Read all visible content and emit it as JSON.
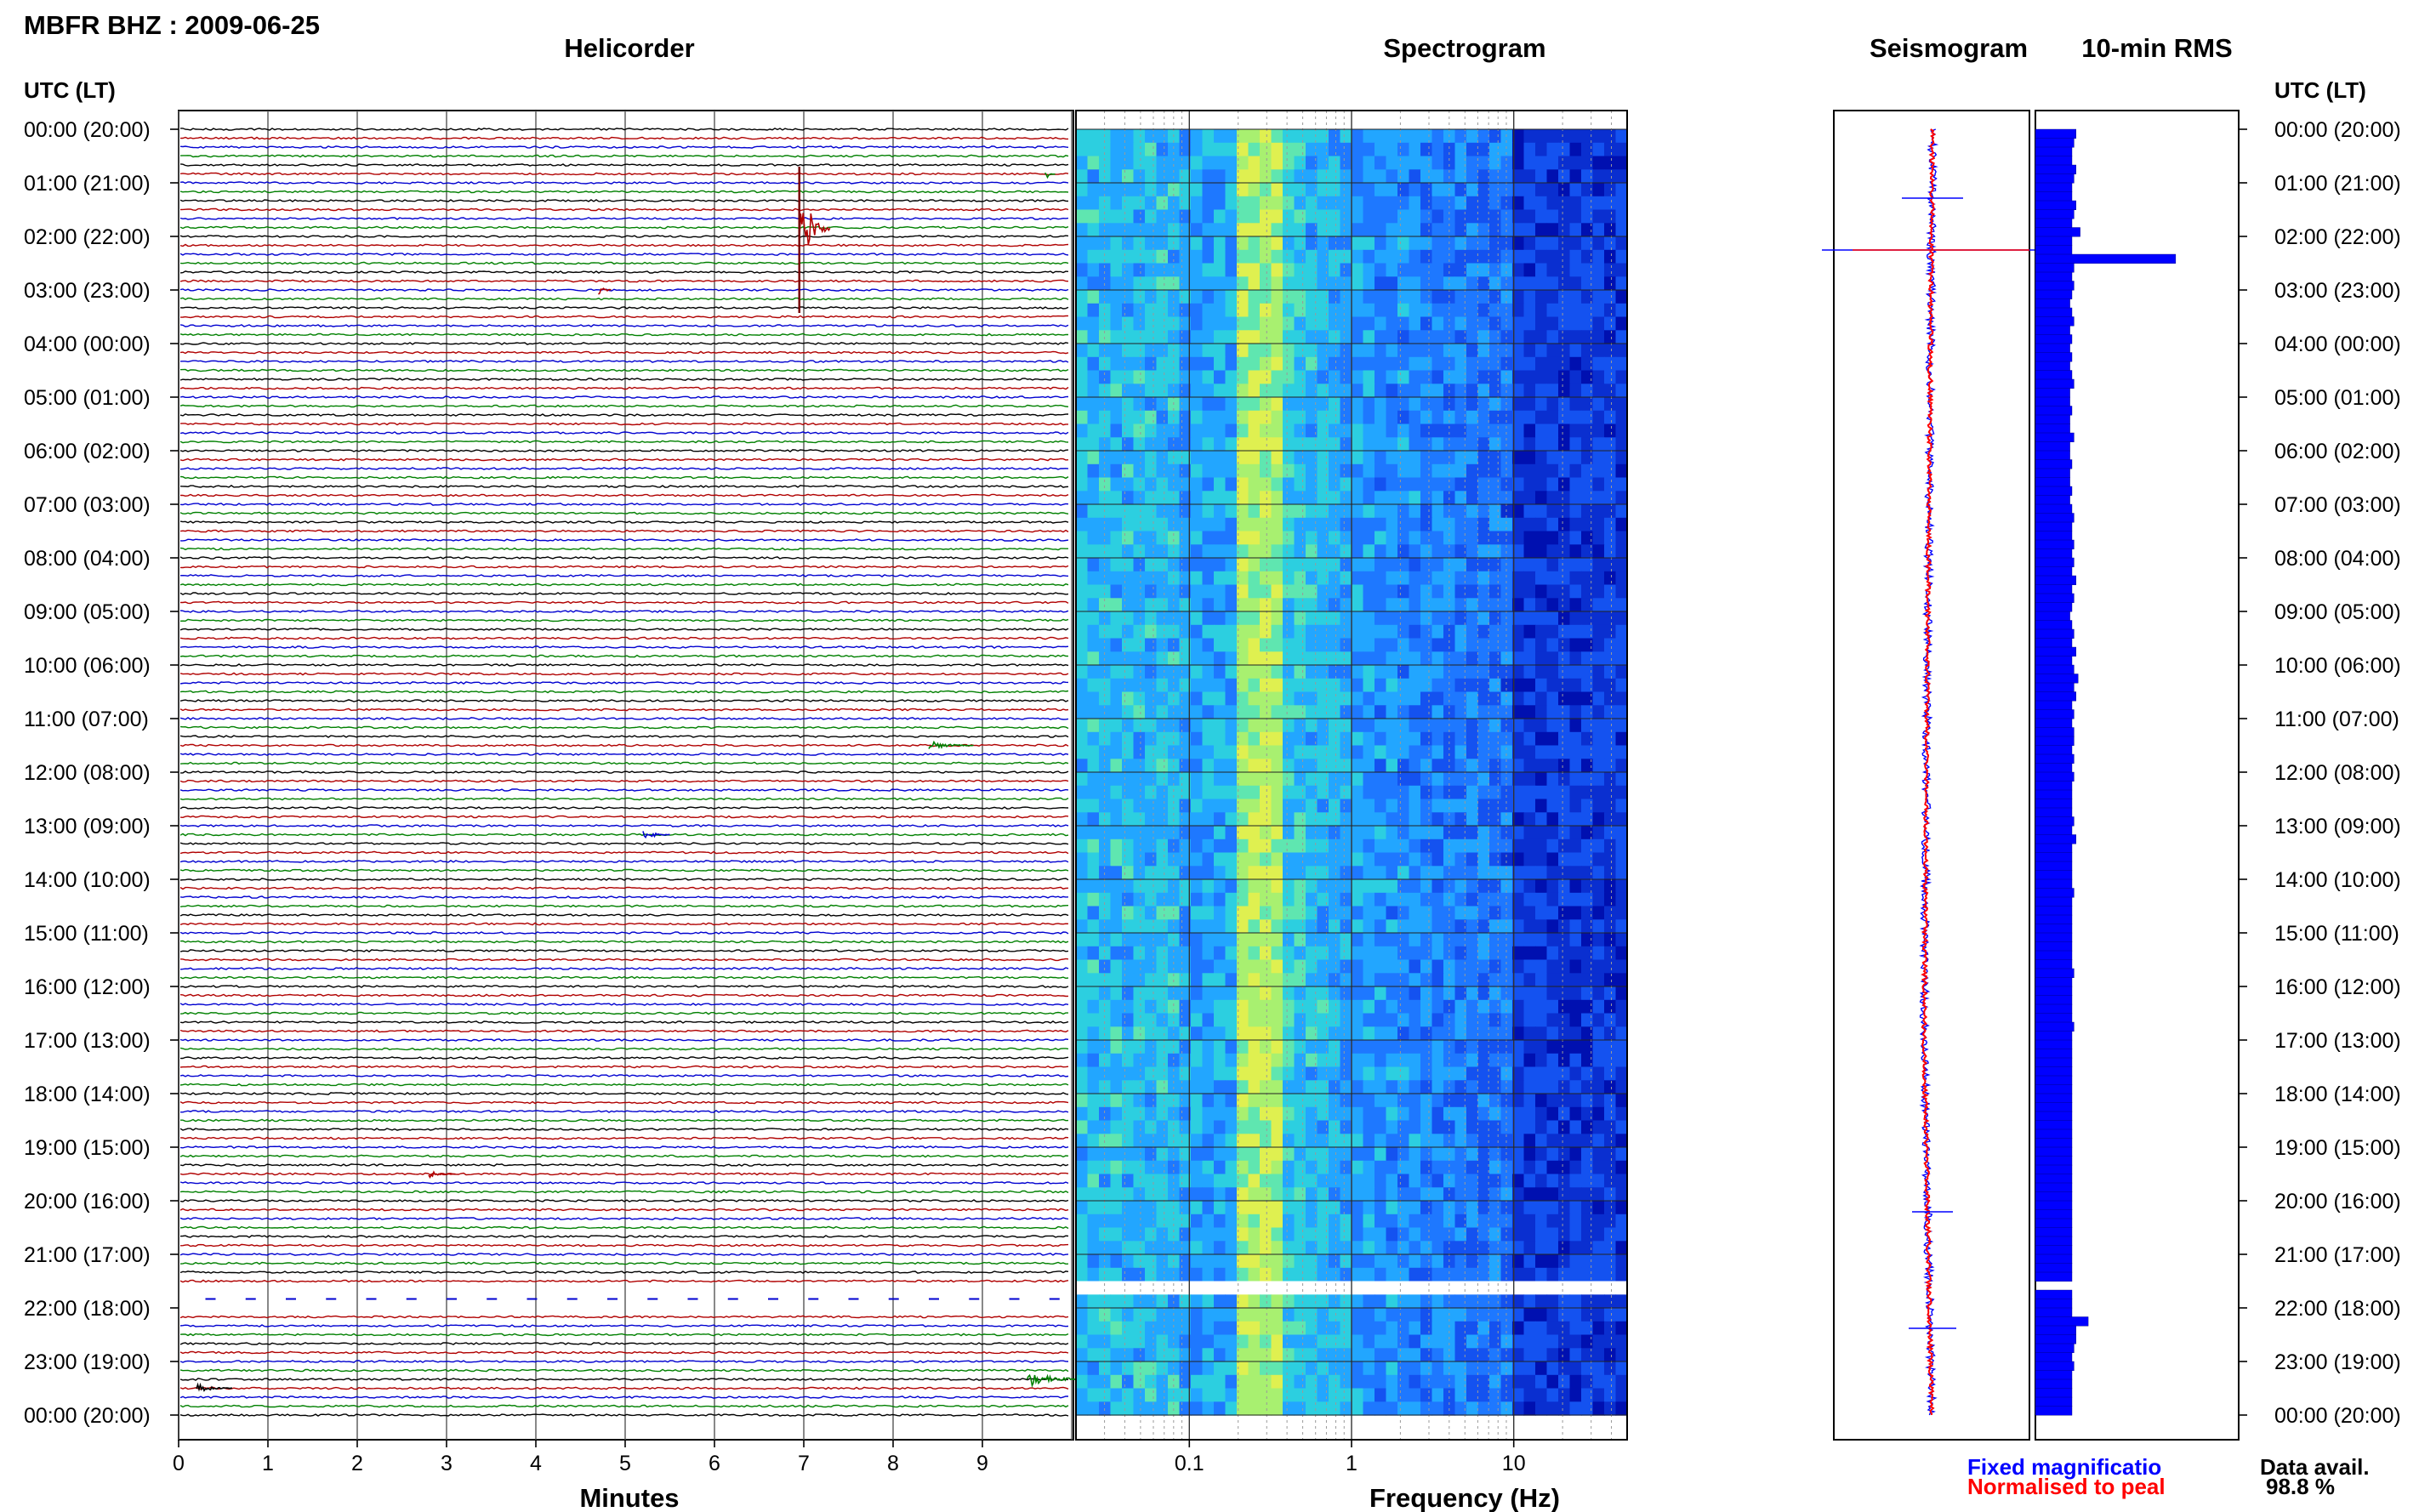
{
  "header": {
    "station": "MBFR BHZ : 2009-06-25"
  },
  "panels": {
    "helicorder": "Helicorder",
    "spectrogram": "Spectrogram",
    "seismogram": "Seismogram",
    "rms": "10-min RMS"
  },
  "axes": {
    "time_header_left": "UTC (LT)",
    "time_header_right": "UTC (LT)",
    "minutes_label": "Minutes",
    "frequency_label": "Frequency (Hz)"
  },
  "legend": {
    "fixed": "Fixed magnificatio",
    "normalised": "Normalised to peal",
    "fixed_color": "#0000ff",
    "normalised_color": "#ff0000"
  },
  "availability": {
    "label": "Data avail.",
    "value": "98.8 %"
  },
  "colors": {
    "trace_cycle": [
      "#000000",
      "#b00000",
      "#0000d0",
      "#008000"
    ],
    "spectrogram_low": "#00008a",
    "spectrogram_mid": "#1e90ff",
    "spectrogram_high": "#b4f060",
    "rms_bar": "#0000ff"
  },
  "chart_data": [
    {
      "type": "line",
      "title": "Helicorder",
      "xlabel": "Minutes",
      "ylabel": "UTC (LT)",
      "xlim": [
        0,
        10
      ],
      "x_ticks": [
        "0",
        "1",
        "2",
        "3",
        "4",
        "5",
        "6",
        "7",
        "8",
        "9"
      ],
      "time_ticks": [
        "00:00 (20:00)",
        "01:00 (21:00)",
        "02:00 (22:00)",
        "03:00 (23:00)",
        "04:00 (00:00)",
        "05:00 (01:00)",
        "06:00 (02:00)",
        "07:00 (03:00)",
        "08:00 (04:00)",
        "09:00 (05:00)",
        "10:00 (06:00)",
        "11:00 (07:00)",
        "12:00 (08:00)",
        "13:00 (09:00)",
        "14:00 (10:00)",
        "15:00 (11:00)",
        "16:00 (12:00)",
        "17:00 (13:00)",
        "18:00 (14:00)",
        "19:00 (15:00)",
        "20:00 (16:00)",
        "21:00 (17:00)",
        "22:00 (18:00)",
        "23:00 (19:00)",
        "00:00 (20:00)"
      ],
      "traces_per_hour": 6,
      "grid": true
    },
    {
      "type": "heatmap",
      "title": "Spectrogram",
      "xlabel": "Frequency (Hz)",
      "x_scale": "log",
      "xlim": [
        0.02,
        50
      ],
      "x_ticks": [
        "0.1",
        "1",
        "10"
      ],
      "peak_band_hz": [
        0.2,
        0.35
      ],
      "data_gap_utc": "21:30"
    },
    {
      "type": "line",
      "title": "Seismogram",
      "series": [
        {
          "name": "Fixed magnificatio"
        },
        {
          "name": "Normalised to peal"
        }
      ]
    },
    {
      "type": "bar",
      "title": "10-min RMS",
      "orientation": "horizontal",
      "values": [
        0.2,
        0.19,
        0.18,
        0.18,
        0.2,
        0.19,
        0.18,
        0.18,
        0.2,
        0.19,
        0.18,
        0.22,
        0.18,
        0.18,
        0.69,
        0.19,
        0.18,
        0.19,
        0.18,
        0.17,
        0.18,
        0.19,
        0.17,
        0.18,
        0.17,
        0.18,
        0.17,
        0.18,
        0.19,
        0.17,
        0.17,
        0.18,
        0.17,
        0.17,
        0.19,
        0.17,
        0.17,
        0.18,
        0.17,
        0.17,
        0.18,
        0.17,
        0.18,
        0.19,
        0.18,
        0.18,
        0.19,
        0.18,
        0.19,
        0.18,
        0.2,
        0.18,
        0.19,
        0.18,
        0.17,
        0.18,
        0.19,
        0.18,
        0.2,
        0.18,
        0.19,
        0.21,
        0.19,
        0.2,
        0.18,
        0.19,
        0.18,
        0.19,
        0.19,
        0.18,
        0.19,
        0.18,
        0.19,
        0.18,
        0.18,
        0.18,
        0.18,
        0.19,
        0.18,
        0.2,
        0.18,
        0.18,
        0.18,
        0.18,
        0.18,
        0.19,
        0.18,
        0.18,
        0.18,
        0.18,
        0.18,
        0.18,
        0.18,
        0.18,
        0.19,
        0.18,
        0.18,
        0.18,
        0.18,
        0.18,
        0.19,
        0.18,
        0.18,
        0.18,
        0.18,
        0.18,
        0.18,
        0.18,
        0.18,
        0.18,
        0.18,
        0.18,
        0.18,
        0.18,
        0.18,
        0.18,
        0.18,
        0.18,
        0.18,
        0.18,
        0.18,
        0.18,
        0.18,
        0.18,
        0.18,
        0.18,
        0.18,
        0.18,
        0.18,
        0.0,
        0.18,
        0.18,
        0.18,
        0.26,
        0.2,
        0.2,
        0.19,
        0.18,
        0.19,
        0.18,
        0.18,
        0.18,
        0.18,
        0.18
      ]
    }
  ]
}
